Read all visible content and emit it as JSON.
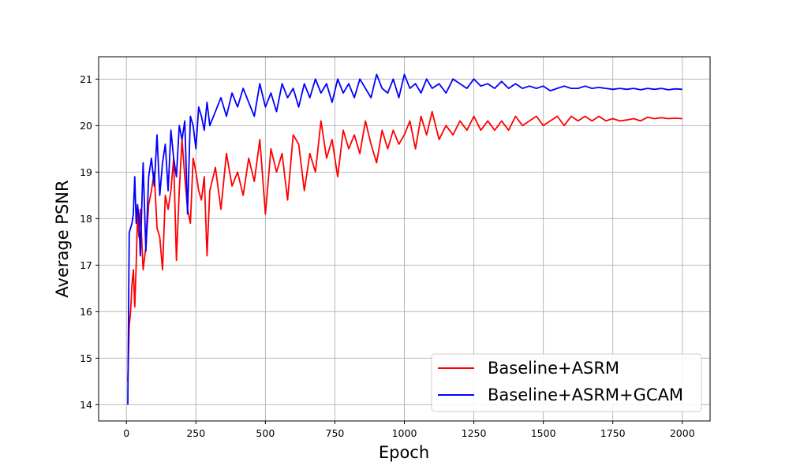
{
  "chart_data": {
    "type": "line",
    "title": "",
    "xlabel": "Epoch",
    "ylabel": "Average PSNR",
    "xlim": [
      -100,
      2100
    ],
    "ylim": [
      13.65,
      21.48
    ],
    "xticks": [
      0,
      250,
      500,
      750,
      1000,
      1250,
      1500,
      1750,
      2000
    ],
    "yticks": [
      14,
      15,
      16,
      17,
      18,
      19,
      20,
      21
    ],
    "grid": true,
    "legend_position": "lower-right",
    "series": [
      {
        "name": "Baseline+ASRM",
        "color": "#ff0000",
        "x": [
          5,
          10,
          15,
          20,
          25,
          30,
          35,
          40,
          45,
          50,
          60,
          70,
          80,
          90,
          100,
          110,
          120,
          130,
          140,
          150,
          160,
          170,
          180,
          190,
          200,
          210,
          220,
          230,
          240,
          250,
          260,
          270,
          280,
          290,
          300,
          320,
          340,
          360,
          380,
          400,
          420,
          440,
          460,
          480,
          500,
          520,
          540,
          560,
          580,
          600,
          620,
          640,
          660,
          680,
          700,
          720,
          740,
          760,
          780,
          800,
          820,
          840,
          860,
          880,
          900,
          920,
          940,
          960,
          980,
          1000,
          1020,
          1040,
          1060,
          1080,
          1100,
          1125,
          1150,
          1175,
          1200,
          1225,
          1250,
          1275,
          1300,
          1325,
          1350,
          1375,
          1400,
          1425,
          1450,
          1475,
          1500,
          1525,
          1550,
          1575,
          1600,
          1625,
          1650,
          1675,
          1700,
          1725,
          1750,
          1775,
          1800,
          1825,
          1850,
          1875,
          1900,
          1925,
          1950,
          1975,
          2000
        ],
        "values": [
          14.5,
          15.7,
          16.0,
          16.6,
          16.9,
          16.1,
          17.0,
          18.1,
          17.6,
          18.2,
          16.9,
          17.4,
          18.3,
          18.6,
          19.0,
          17.8,
          17.6,
          16.9,
          18.5,
          18.2,
          18.6,
          19.3,
          17.1,
          18.6,
          19.7,
          18.9,
          18.2,
          17.9,
          19.3,
          19.0,
          18.6,
          18.4,
          18.9,
          17.2,
          18.6,
          19.1,
          18.2,
          19.4,
          18.7,
          19.0,
          18.5,
          19.3,
          18.8,
          19.7,
          18.1,
          19.5,
          19.0,
          19.4,
          18.4,
          19.8,
          19.6,
          18.6,
          19.4,
          19.0,
          20.1,
          19.3,
          19.7,
          18.9,
          19.9,
          19.5,
          19.8,
          19.4,
          20.1,
          19.6,
          19.2,
          19.9,
          19.5,
          19.9,
          19.6,
          19.8,
          20.1,
          19.5,
          20.2,
          19.8,
          20.3,
          19.7,
          20.0,
          19.8,
          20.1,
          19.9,
          20.2,
          19.9,
          20.1,
          19.9,
          20.1,
          19.9,
          20.2,
          20.0,
          20.1,
          20.2,
          20.0,
          20.1,
          20.2,
          20.0,
          20.2,
          20.1,
          20.2,
          20.1,
          20.2,
          20.1,
          20.15,
          20.1,
          20.12,
          20.15,
          20.1,
          20.18,
          20.15,
          20.17,
          20.15,
          20.16,
          20.15
        ]
      },
      {
        "name": "Baseline+ASRM+GCAM",
        "color": "#0000ff",
        "x": [
          5,
          10,
          15,
          20,
          25,
          30,
          35,
          40,
          45,
          50,
          60,
          70,
          80,
          90,
          100,
          110,
          120,
          130,
          140,
          150,
          160,
          170,
          180,
          190,
          200,
          210,
          220,
          230,
          240,
          250,
          260,
          270,
          280,
          290,
          300,
          320,
          340,
          360,
          380,
          400,
          420,
          440,
          460,
          480,
          500,
          520,
          540,
          560,
          580,
          600,
          620,
          640,
          660,
          680,
          700,
          720,
          740,
          760,
          780,
          800,
          820,
          840,
          860,
          880,
          900,
          920,
          940,
          960,
          980,
          1000,
          1020,
          1040,
          1060,
          1080,
          1100,
          1125,
          1150,
          1175,
          1200,
          1225,
          1250,
          1275,
          1300,
          1325,
          1350,
          1375,
          1400,
          1425,
          1450,
          1475,
          1500,
          1525,
          1550,
          1575,
          1600,
          1625,
          1650,
          1675,
          1700,
          1725,
          1750,
          1775,
          1800,
          1825,
          1850,
          1875,
          1900,
          1925,
          1950,
          1975,
          2000
        ],
        "values": [
          14.0,
          17.7,
          17.8,
          17.9,
          18.1,
          18.9,
          17.9,
          18.3,
          18.0,
          17.2,
          19.2,
          17.3,
          18.9,
          19.3,
          18.7,
          19.8,
          18.5,
          19.2,
          19.6,
          18.6,
          19.9,
          19.3,
          18.9,
          20.0,
          19.7,
          20.1,
          18.1,
          20.2,
          20.0,
          19.5,
          20.4,
          20.2,
          19.9,
          20.5,
          20.0,
          20.3,
          20.6,
          20.2,
          20.7,
          20.4,
          20.8,
          20.5,
          20.2,
          20.9,
          20.4,
          20.7,
          20.3,
          20.9,
          20.6,
          20.8,
          20.4,
          20.9,
          20.6,
          21.0,
          20.7,
          20.9,
          20.5,
          21.0,
          20.7,
          20.9,
          20.6,
          21.0,
          20.8,
          20.6,
          21.1,
          20.8,
          20.7,
          21.0,
          20.6,
          21.1,
          20.8,
          20.9,
          20.7,
          21.0,
          20.8,
          20.9,
          20.7,
          21.0,
          20.9,
          20.8,
          21.0,
          20.85,
          20.9,
          20.8,
          20.95,
          20.8,
          20.9,
          20.8,
          20.85,
          20.8,
          20.85,
          20.75,
          20.8,
          20.85,
          20.8,
          20.8,
          20.85,
          20.8,
          20.82,
          20.8,
          20.78,
          20.8,
          20.78,
          20.8,
          20.77,
          20.8,
          20.78,
          20.8,
          20.77,
          20.79,
          20.78
        ]
      }
    ]
  }
}
